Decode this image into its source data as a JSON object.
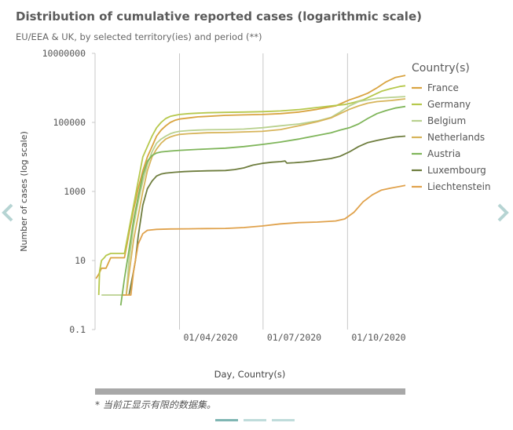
{
  "title": "Distribution of cumulative reported cases (logarithmic scale)",
  "subtitle": "EU/EEA & UK, by selected territory(ies) and period (**)",
  "footnote": "* 当前正显示有限的数据集。",
  "nav": {
    "left": "chevron-left",
    "right": "chevron-right"
  },
  "pager": {
    "pages": 3,
    "current": 1
  },
  "chart_data": {
    "type": "line",
    "scale": "log",
    "title": "Distribution of cumulative reported cases (logarithmic scale)",
    "xlabel": "Day, Country(s)",
    "ylabel": "Number of cases (log scale)",
    "ylim": [
      0.1,
      10000000
    ],
    "yticks": [
      {
        "value": 10000000,
        "label": "10000000"
      },
      {
        "value": 100000,
        "label": "100000"
      },
      {
        "value": 1000,
        "label": "1000"
      },
      {
        "value": 10,
        "label": "10"
      },
      {
        "value": 0.1,
        "label": "0.1"
      }
    ],
    "xlim": [
      -32,
      306
    ],
    "xticks": [
      {
        "day": 60,
        "label": "01/04/2020"
      },
      {
        "day": 151,
        "label": "01/07/2020"
      },
      {
        "day": 243,
        "label": "01/10/2020"
      }
    ],
    "x_unit": "days since 01/02/2020",
    "legend_title": "Country(s)",
    "grid": "vertical",
    "series": [
      {
        "name": "France",
        "color": "#d9a441",
        "points": [
          [
            -31,
            3
          ],
          [
            -28,
            4
          ],
          [
            -25,
            6
          ],
          [
            -20,
            6
          ],
          [
            -15,
            12
          ],
          [
            -5,
            12
          ],
          [
            0,
            12
          ],
          [
            5,
            60
          ],
          [
            10,
            300
          ],
          [
            15,
            1200
          ],
          [
            20,
            4000
          ],
          [
            25,
            10000
          ],
          [
            30,
            20000
          ],
          [
            35,
            40000
          ],
          [
            40,
            60000
          ],
          [
            45,
            80000
          ],
          [
            50,
            100000
          ],
          [
            55,
            115000
          ],
          [
            60,
            125000
          ],
          [
            70,
            135000
          ],
          [
            80,
            145000
          ],
          [
            90,
            150000
          ],
          [
            110,
            160000
          ],
          [
            130,
            165000
          ],
          [
            150,
            170000
          ],
          [
            170,
            180000
          ],
          [
            190,
            200000
          ],
          [
            210,
            240000
          ],
          [
            230,
            300000
          ],
          [
            245,
            450000
          ],
          [
            255,
            550000
          ],
          [
            265,
            700000
          ],
          [
            275,
            1000000
          ],
          [
            285,
            1500000
          ],
          [
            295,
            2000000
          ],
          [
            306,
            2300000
          ]
        ]
      },
      {
        "name": "Germany",
        "color": "#b6c84c",
        "points": [
          [
            -28,
            1
          ],
          [
            -27,
            5
          ],
          [
            -25,
            10
          ],
          [
            -22,
            12
          ],
          [
            -20,
            14
          ],
          [
            -15,
            16
          ],
          [
            0,
            16
          ],
          [
            5,
            80
          ],
          [
            10,
            400
          ],
          [
            15,
            2000
          ],
          [
            20,
            10000
          ],
          [
            25,
            20000
          ],
          [
            30,
            40000
          ],
          [
            35,
            70000
          ],
          [
            40,
            100000
          ],
          [
            45,
            130000
          ],
          [
            50,
            150000
          ],
          [
            55,
            160000
          ],
          [
            60,
            170000
          ],
          [
            70,
            180000
          ],
          [
            80,
            185000
          ],
          [
            90,
            190000
          ],
          [
            110,
            195000
          ],
          [
            130,
            200000
          ],
          [
            150,
            205000
          ],
          [
            170,
            215000
          ],
          [
            190,
            235000
          ],
          [
            210,
            270000
          ],
          [
            225,
            300000
          ],
          [
            240,
            330000
          ],
          [
            250,
            380000
          ],
          [
            260,
            450000
          ],
          [
            270,
            600000
          ],
          [
            280,
            800000
          ],
          [
            290,
            950000
          ],
          [
            300,
            1100000
          ],
          [
            306,
            1150000
          ]
        ]
      },
      {
        "name": "Belgium",
        "color": "#b9d18f",
        "points": [
          [
            -25,
            1
          ],
          [
            0,
            1
          ],
          [
            2,
            1
          ],
          [
            5,
            10
          ],
          [
            10,
            100
          ],
          [
            15,
            500
          ],
          [
            20,
            2000
          ],
          [
            25,
            6000
          ],
          [
            30,
            14000
          ],
          [
            35,
            25000
          ],
          [
            40,
            33000
          ],
          [
            45,
            40000
          ],
          [
            50,
            47000
          ],
          [
            55,
            52000
          ],
          [
            60,
            55000
          ],
          [
            70,
            58000
          ],
          [
            80,
            60000
          ],
          [
            90,
            61000
          ],
          [
            110,
            62000
          ],
          [
            130,
            64000
          ],
          [
            150,
            70000
          ],
          [
            170,
            80000
          ],
          [
            190,
            90000
          ],
          [
            210,
            110000
          ],
          [
            225,
            140000
          ],
          [
            235,
            200000
          ],
          [
            245,
            300000
          ],
          [
            255,
            400000
          ],
          [
            265,
            450000
          ],
          [
            275,
            500000
          ],
          [
            290,
            530000
          ],
          [
            306,
            560000
          ]
        ]
      },
      {
        "name": "Netherlands",
        "color": "#d7b45a",
        "points": [
          [
            2,
            1
          ],
          [
            5,
            4
          ],
          [
            10,
            40
          ],
          [
            15,
            200
          ],
          [
            20,
            1000
          ],
          [
            25,
            4000
          ],
          [
            30,
            10000
          ],
          [
            35,
            17000
          ],
          [
            40,
            25000
          ],
          [
            45,
            33000
          ],
          [
            50,
            38000
          ],
          [
            55,
            42000
          ],
          [
            60,
            45000
          ],
          [
            70,
            47000
          ],
          [
            80,
            48500
          ],
          [
            90,
            50000
          ],
          [
            110,
            51000
          ],
          [
            130,
            53000
          ],
          [
            150,
            55000
          ],
          [
            170,
            62000
          ],
          [
            190,
            80000
          ],
          [
            210,
            105000
          ],
          [
            225,
            135000
          ],
          [
            235,
            180000
          ],
          [
            245,
            240000
          ],
          [
            255,
            300000
          ],
          [
            265,
            360000
          ],
          [
            275,
            400000
          ],
          [
            290,
            430000
          ],
          [
            306,
            480000
          ]
        ]
      },
      {
        "name": "Austria",
        "color": "#7fb55a",
        "points": [
          [
            -4,
            0.5
          ],
          [
            0,
            3
          ],
          [
            5,
            20
          ],
          [
            10,
            150
          ],
          [
            15,
            700
          ],
          [
            20,
            3000
          ],
          [
            25,
            7500
          ],
          [
            30,
            11000
          ],
          [
            35,
            13000
          ],
          [
            40,
            14000
          ],
          [
            50,
            14800
          ],
          [
            60,
            15500
          ],
          [
            70,
            16000
          ],
          [
            80,
            16500
          ],
          [
            90,
            17000
          ],
          [
            110,
            18000
          ],
          [
            130,
            20000
          ],
          [
            150,
            23000
          ],
          [
            170,
            27000
          ],
          [
            190,
            33000
          ],
          [
            210,
            42000
          ],
          [
            225,
            50000
          ],
          [
            235,
            60000
          ],
          [
            245,
            70000
          ],
          [
            255,
            90000
          ],
          [
            265,
            130000
          ],
          [
            275,
            180000
          ],
          [
            285,
            220000
          ],
          [
            295,
            260000
          ],
          [
            306,
            290000
          ]
        ]
      },
      {
        "name": "Luxembourg",
        "color": "#6e7d3e",
        "points": [
          [
            5,
            1
          ],
          [
            10,
            5
          ],
          [
            12,
            10
          ],
          [
            15,
            50
          ],
          [
            20,
            400
          ],
          [
            25,
            1200
          ],
          [
            30,
            2000
          ],
          [
            35,
            2800
          ],
          [
            40,
            3200
          ],
          [
            45,
            3400
          ],
          [
            55,
            3600
          ],
          [
            65,
            3750
          ],
          [
            75,
            3850
          ],
          [
            90,
            3950
          ],
          [
            110,
            4050
          ],
          [
            120,
            4300
          ],
          [
            130,
            4800
          ],
          [
            140,
            5800
          ],
          [
            150,
            6500
          ],
          [
            160,
            7000
          ],
          [
            170,
            7300
          ],
          [
            175,
            7600
          ],
          [
            177,
            6600
          ],
          [
            185,
            6800
          ],
          [
            195,
            7100
          ],
          [
            205,
            7600
          ],
          [
            215,
            8300
          ],
          [
            225,
            9000
          ],
          [
            235,
            10500
          ],
          [
            245,
            14000
          ],
          [
            255,
            20000
          ],
          [
            265,
            26000
          ],
          [
            275,
            30000
          ],
          [
            285,
            34000
          ],
          [
            295,
            38000
          ],
          [
            306,
            40000
          ]
        ]
      },
      {
        "name": "Liechtenstein",
        "color": "#e0a24c",
        "points": [
          [
            -2,
            1
          ],
          [
            3,
            1
          ],
          [
            7,
            1
          ],
          [
            10,
            5
          ],
          [
            15,
            30
          ],
          [
            20,
            60
          ],
          [
            25,
            75
          ],
          [
            35,
            80
          ],
          [
            50,
            82
          ],
          [
            70,
            83
          ],
          [
            90,
            84
          ],
          [
            110,
            85
          ],
          [
            130,
            90
          ],
          [
            150,
            100
          ],
          [
            170,
            115
          ],
          [
            190,
            125
          ],
          [
            210,
            130
          ],
          [
            230,
            140
          ],
          [
            240,
            160
          ],
          [
            250,
            250
          ],
          [
            260,
            500
          ],
          [
            270,
            800
          ],
          [
            280,
            1100
          ],
          [
            290,
            1250
          ],
          [
            300,
            1400
          ],
          [
            306,
            1500
          ]
        ]
      }
    ]
  }
}
